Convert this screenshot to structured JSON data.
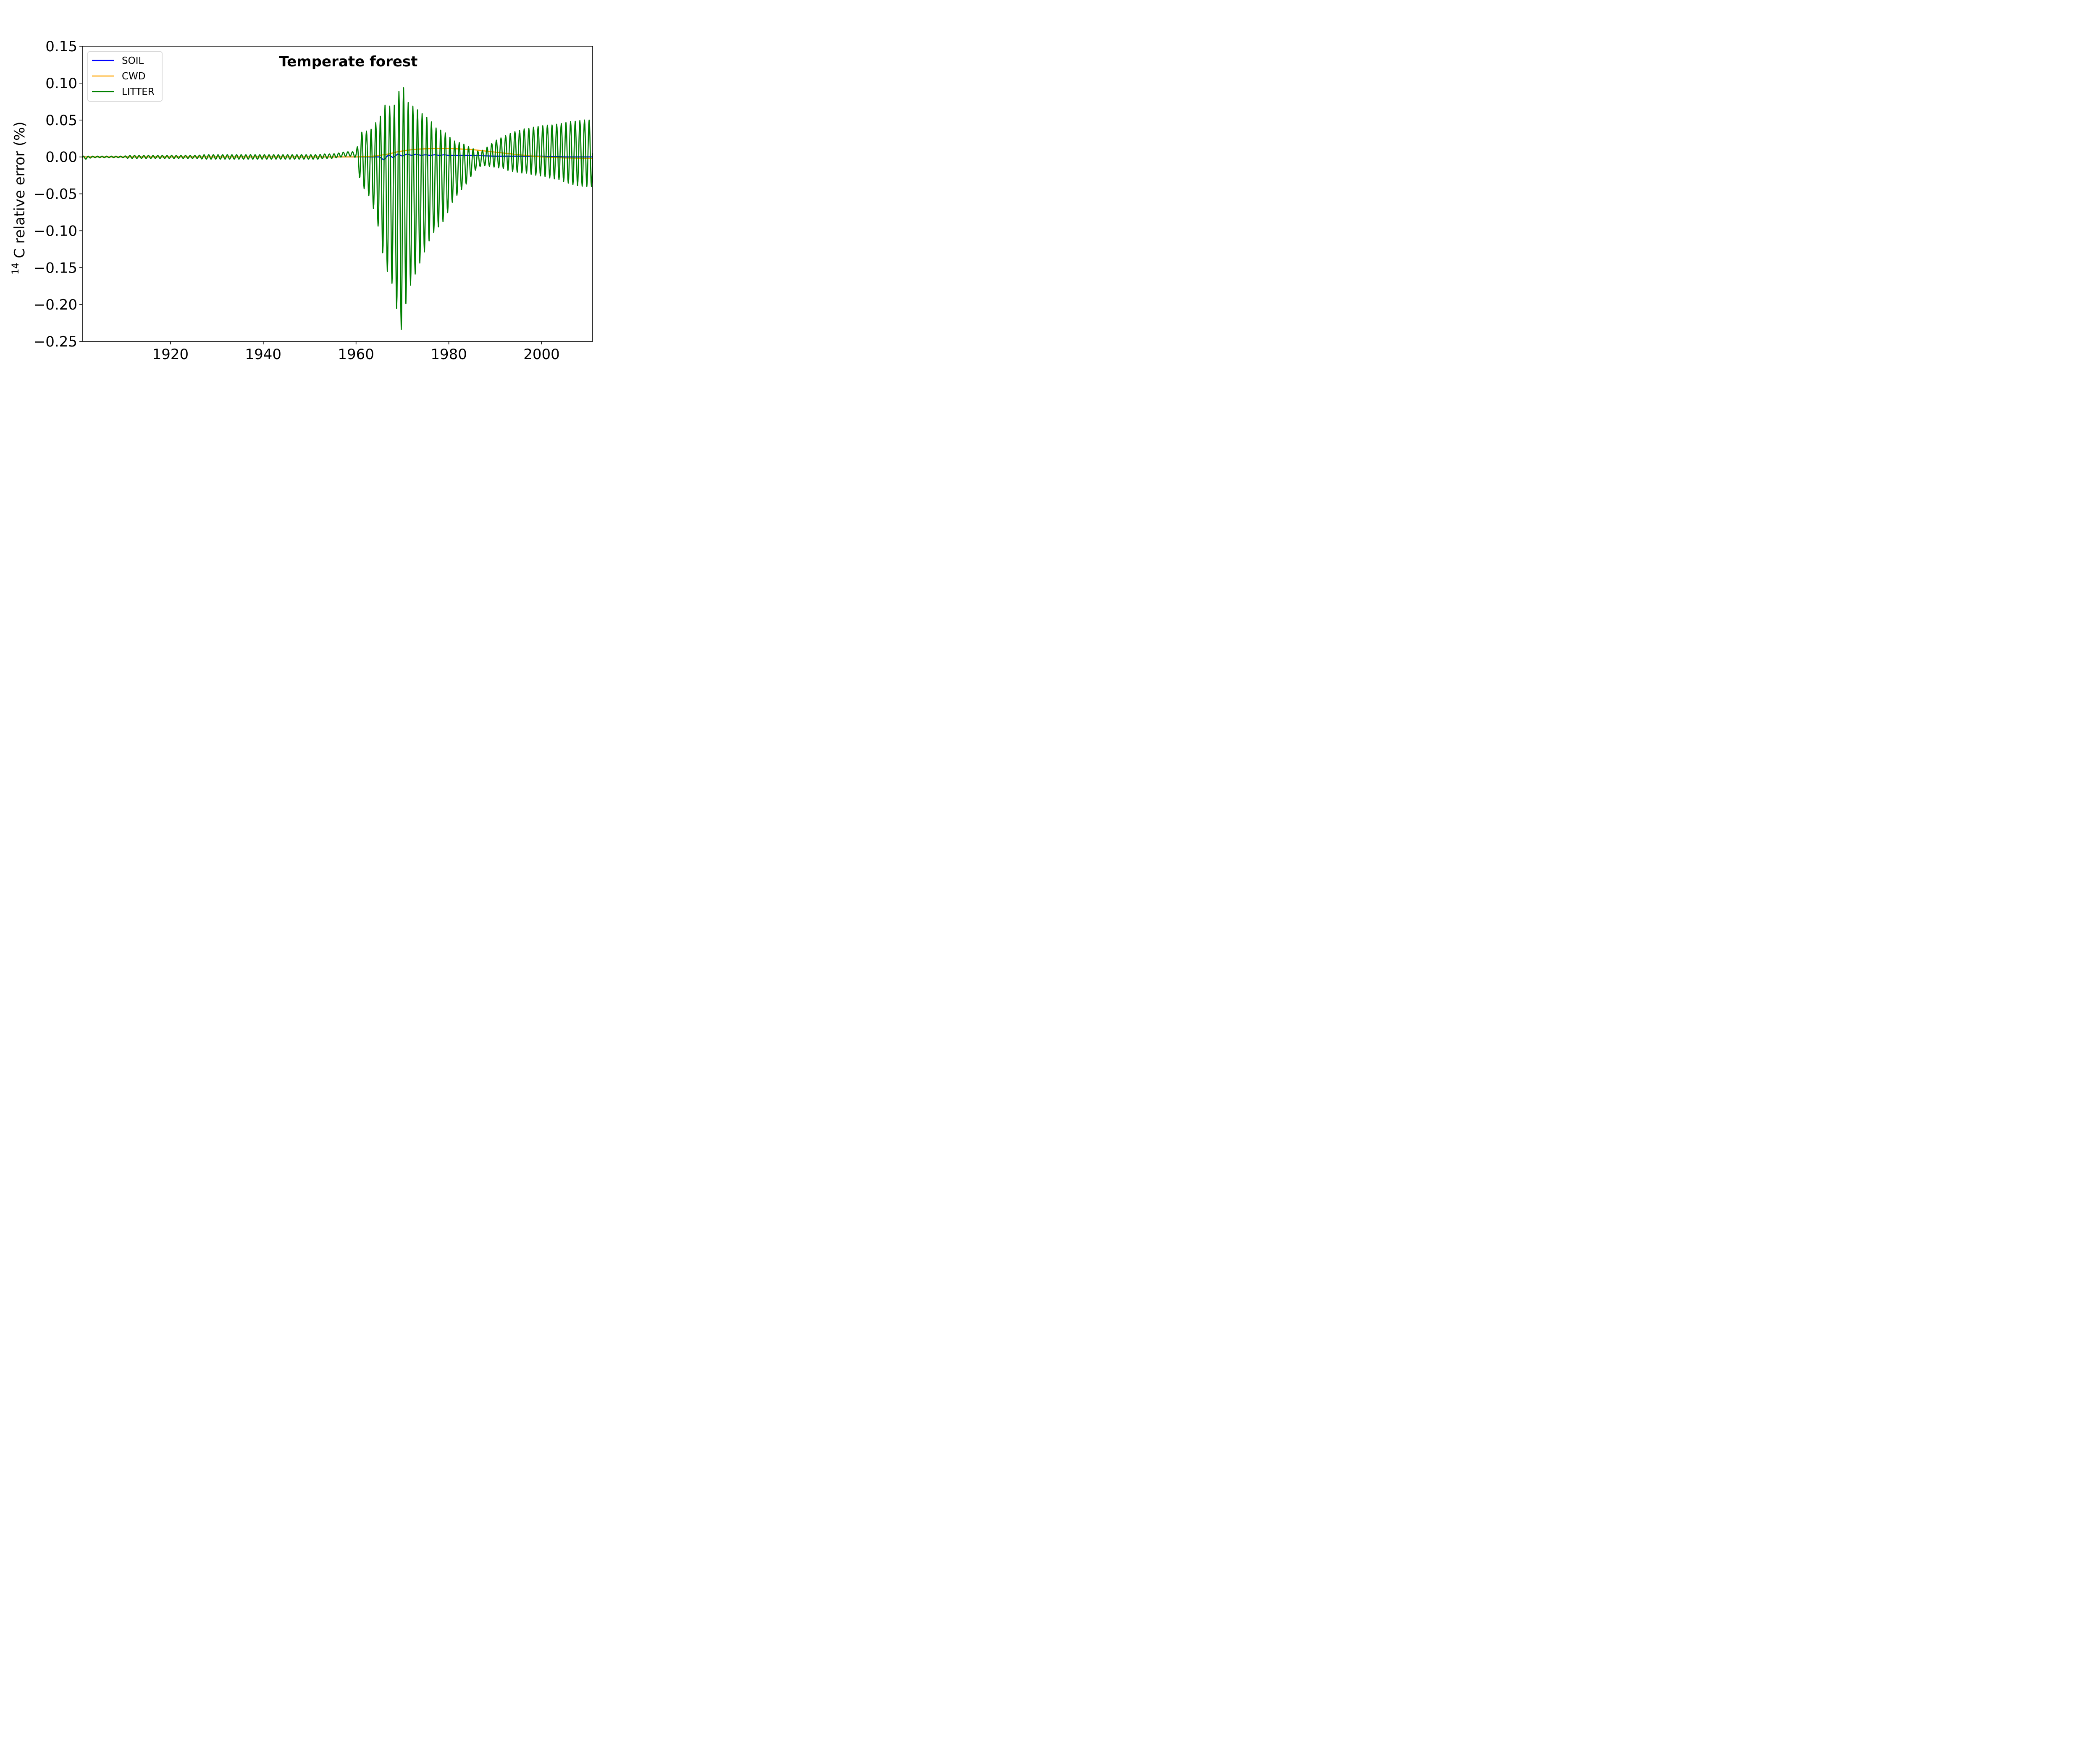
{
  "chart_data": {
    "type": "line",
    "title": "Temperate forest",
    "xlabel": "",
    "ylabel_sup": "14",
    "ylabel_main": "C relative error (%)",
    "xlim": [
      1901,
      2011
    ],
    "ylim": [
      -0.25,
      0.15
    ],
    "xticks": [
      1920,
      1940,
      1960,
      1980,
      2000
    ],
    "yticks": [
      0.15,
      0.1,
      0.05,
      0.0,
      -0.05,
      -0.1,
      -0.15,
      -0.2,
      -0.25
    ],
    "ytick_labels": [
      "0.15",
      "0.10",
      "0.05",
      "0.00",
      "−0.05",
      "−0.10",
      "−0.15",
      "−0.20",
      "−0.25"
    ],
    "xtick_labels": [
      "1920",
      "1940",
      "1960",
      "1980",
      "2000"
    ],
    "legend_position": "top-left",
    "grid": false,
    "series": [
      {
        "name": "SOIL",
        "color": "#0000ff",
        "x": [
          1901,
          1950,
          1960,
          1965,
          1966,
          1967,
          1968,
          1969,
          1970,
          1971,
          1972,
          1973,
          1974,
          1975,
          1976,
          1977,
          1978,
          1979,
          1980,
          1985,
          1990,
          1995,
          2000,
          2005,
          2011
        ],
        "y": [
          0.0,
          0.0,
          0.0,
          0.0,
          -0.004,
          0.003,
          -0.001,
          0.004,
          0.001,
          0.004,
          0.002,
          0.004,
          0.002,
          0.003,
          0.002,
          0.003,
          0.002,
          0.003,
          0.002,
          0.002,
          0.001,
          0.001,
          0.001,
          0.0,
          0.0
        ]
      },
      {
        "name": "CWD",
        "color": "#ffa500",
        "x": [
          1901,
          1950,
          1960,
          1963,
          1965,
          1967,
          1969,
          1971,
          1973,
          1975,
          1977,
          1980,
          1985,
          1990,
          1995,
          2000,
          2005,
          2011
        ],
        "y": [
          0.0,
          0.0,
          0.0,
          0.0005,
          0.002,
          0.004,
          0.007,
          0.009,
          0.0105,
          0.011,
          0.0115,
          0.0115,
          0.01,
          0.0065,
          0.003,
          0.0,
          -0.0015,
          -0.002
        ]
      },
      {
        "name": "LITTER",
        "color": "#008000",
        "x": [
          1901,
          1902,
          1903,
          1904,
          1905,
          1906,
          1907,
          1908,
          1909,
          1910,
          1911,
          1912,
          1913,
          1914,
          1915,
          1916,
          1917,
          1918,
          1919,
          1920,
          1921,
          1922,
          1923,
          1924,
          1925,
          1926,
          1927,
          1928,
          1929,
          1930,
          1931,
          1932,
          1933,
          1934,
          1935,
          1936,
          1937,
          1938,
          1939,
          1940,
          1941,
          1942,
          1943,
          1944,
          1945,
          1946,
          1947,
          1948,
          1949,
          1950,
          1951,
          1952,
          1953,
          1954,
          1955,
          1956,
          1957,
          1958,
          1959,
          1960,
          1961,
          1962,
          1963,
          1964,
          1965,
          1966,
          1967,
          1968,
          1969,
          1970,
          1971,
          1972,
          1973,
          1974,
          1975,
          1976,
          1977,
          1978,
          1979,
          1980,
          1981,
          1982,
          1983,
          1984,
          1985,
          1986,
          1987,
          1988,
          1989,
          1990,
          1991,
          1992,
          1993,
          1994,
          1995,
          1996,
          1997,
          1998,
          1999,
          2000,
          2001,
          2002,
          2003,
          2004,
          2005,
          2006,
          2007,
          2008,
          2009,
          2010,
          2011
        ],
        "amp": [
          0.002,
          0.002,
          0.001,
          0.001,
          0.001,
          0.001,
          0.001,
          0.001,
          0.001,
          0.001,
          0.002,
          0.002,
          0.002,
          0.002,
          0.002,
          0.002,
          0.002,
          0.002,
          0.002,
          0.002,
          0.002,
          0.002,
          0.002,
          0.002,
          0.002,
          0.002,
          0.003,
          0.003,
          0.003,
          0.003,
          0.003,
          0.003,
          0.003,
          0.003,
          0.003,
          0.003,
          0.003,
          0.003,
          0.003,
          0.003,
          0.003,
          0.003,
          0.003,
          0.003,
          0.003,
          0.003,
          0.003,
          0.003,
          0.003,
          0.003,
          0.003,
          0.003,
          0.003,
          0.003,
          0.003,
          0.003,
          0.003,
          0.003,
          0.003,
          0.004,
          0.035,
          0.04,
          0.045,
          0.06,
          0.075,
          0.105,
          0.115,
          0.12,
          0.15,
          0.17,
          0.13,
          0.12,
          0.11,
          0.1,
          0.09,
          0.08,
          0.07,
          0.065,
          0.06,
          0.05,
          0.04,
          0.035,
          0.03,
          0.025,
          0.018,
          0.012,
          0.01,
          0.012,
          0.015,
          0.018,
          0.02,
          0.022,
          0.025,
          0.027,
          0.028,
          0.03,
          0.03,
          0.032,
          0.033,
          0.034,
          0.035,
          0.036,
          0.037,
          0.038,
          0.04,
          0.042,
          0.043,
          0.044,
          0.045,
          0.045,
          0.045
        ],
        "center": [
          -0.001,
          -0.001,
          0.0,
          0.0,
          0.0,
          0.0,
          0.0,
          0.0,
          0.0,
          0.0,
          0.0,
          0.0,
          0.0,
          0.0,
          0.0,
          0.0,
          0.0,
          0.0,
          0.0,
          0.0,
          0.0,
          0.0,
          0.0,
          0.0,
          0.0,
          0.0,
          0.0,
          0.0,
          0.0,
          0.0,
          0.0,
          0.0,
          0.0,
          0.0,
          0.0,
          0.0,
          0.0,
          0.0,
          0.0,
          0.0,
          0.0,
          0.0,
          0.0,
          0.0,
          0.0,
          0.0,
          0.0,
          0.0,
          0.0,
          0.0,
          0.0,
          0.0,
          0.001,
          0.001,
          0.001,
          0.002,
          0.003,
          0.004,
          0.004,
          0.003,
          -0.002,
          -0.005,
          -0.01,
          -0.015,
          -0.025,
          -0.035,
          -0.045,
          -0.055,
          -0.065,
          -0.07,
          -0.055,
          -0.05,
          -0.045,
          -0.04,
          -0.035,
          -0.03,
          -0.03,
          -0.028,
          -0.026,
          -0.022,
          -0.018,
          -0.015,
          -0.012,
          -0.01,
          -0.006,
          -0.004,
          -0.002,
          0.0,
          0.002,
          0.004,
          0.005,
          0.006,
          0.006,
          0.007,
          0.007,
          0.008,
          0.008,
          0.008,
          0.008,
          0.008,
          0.008,
          0.007,
          0.007,
          0.007,
          0.006,
          0.006,
          0.005,
          0.005,
          0.005,
          0.005,
          0.005
        ]
      }
    ]
  }
}
